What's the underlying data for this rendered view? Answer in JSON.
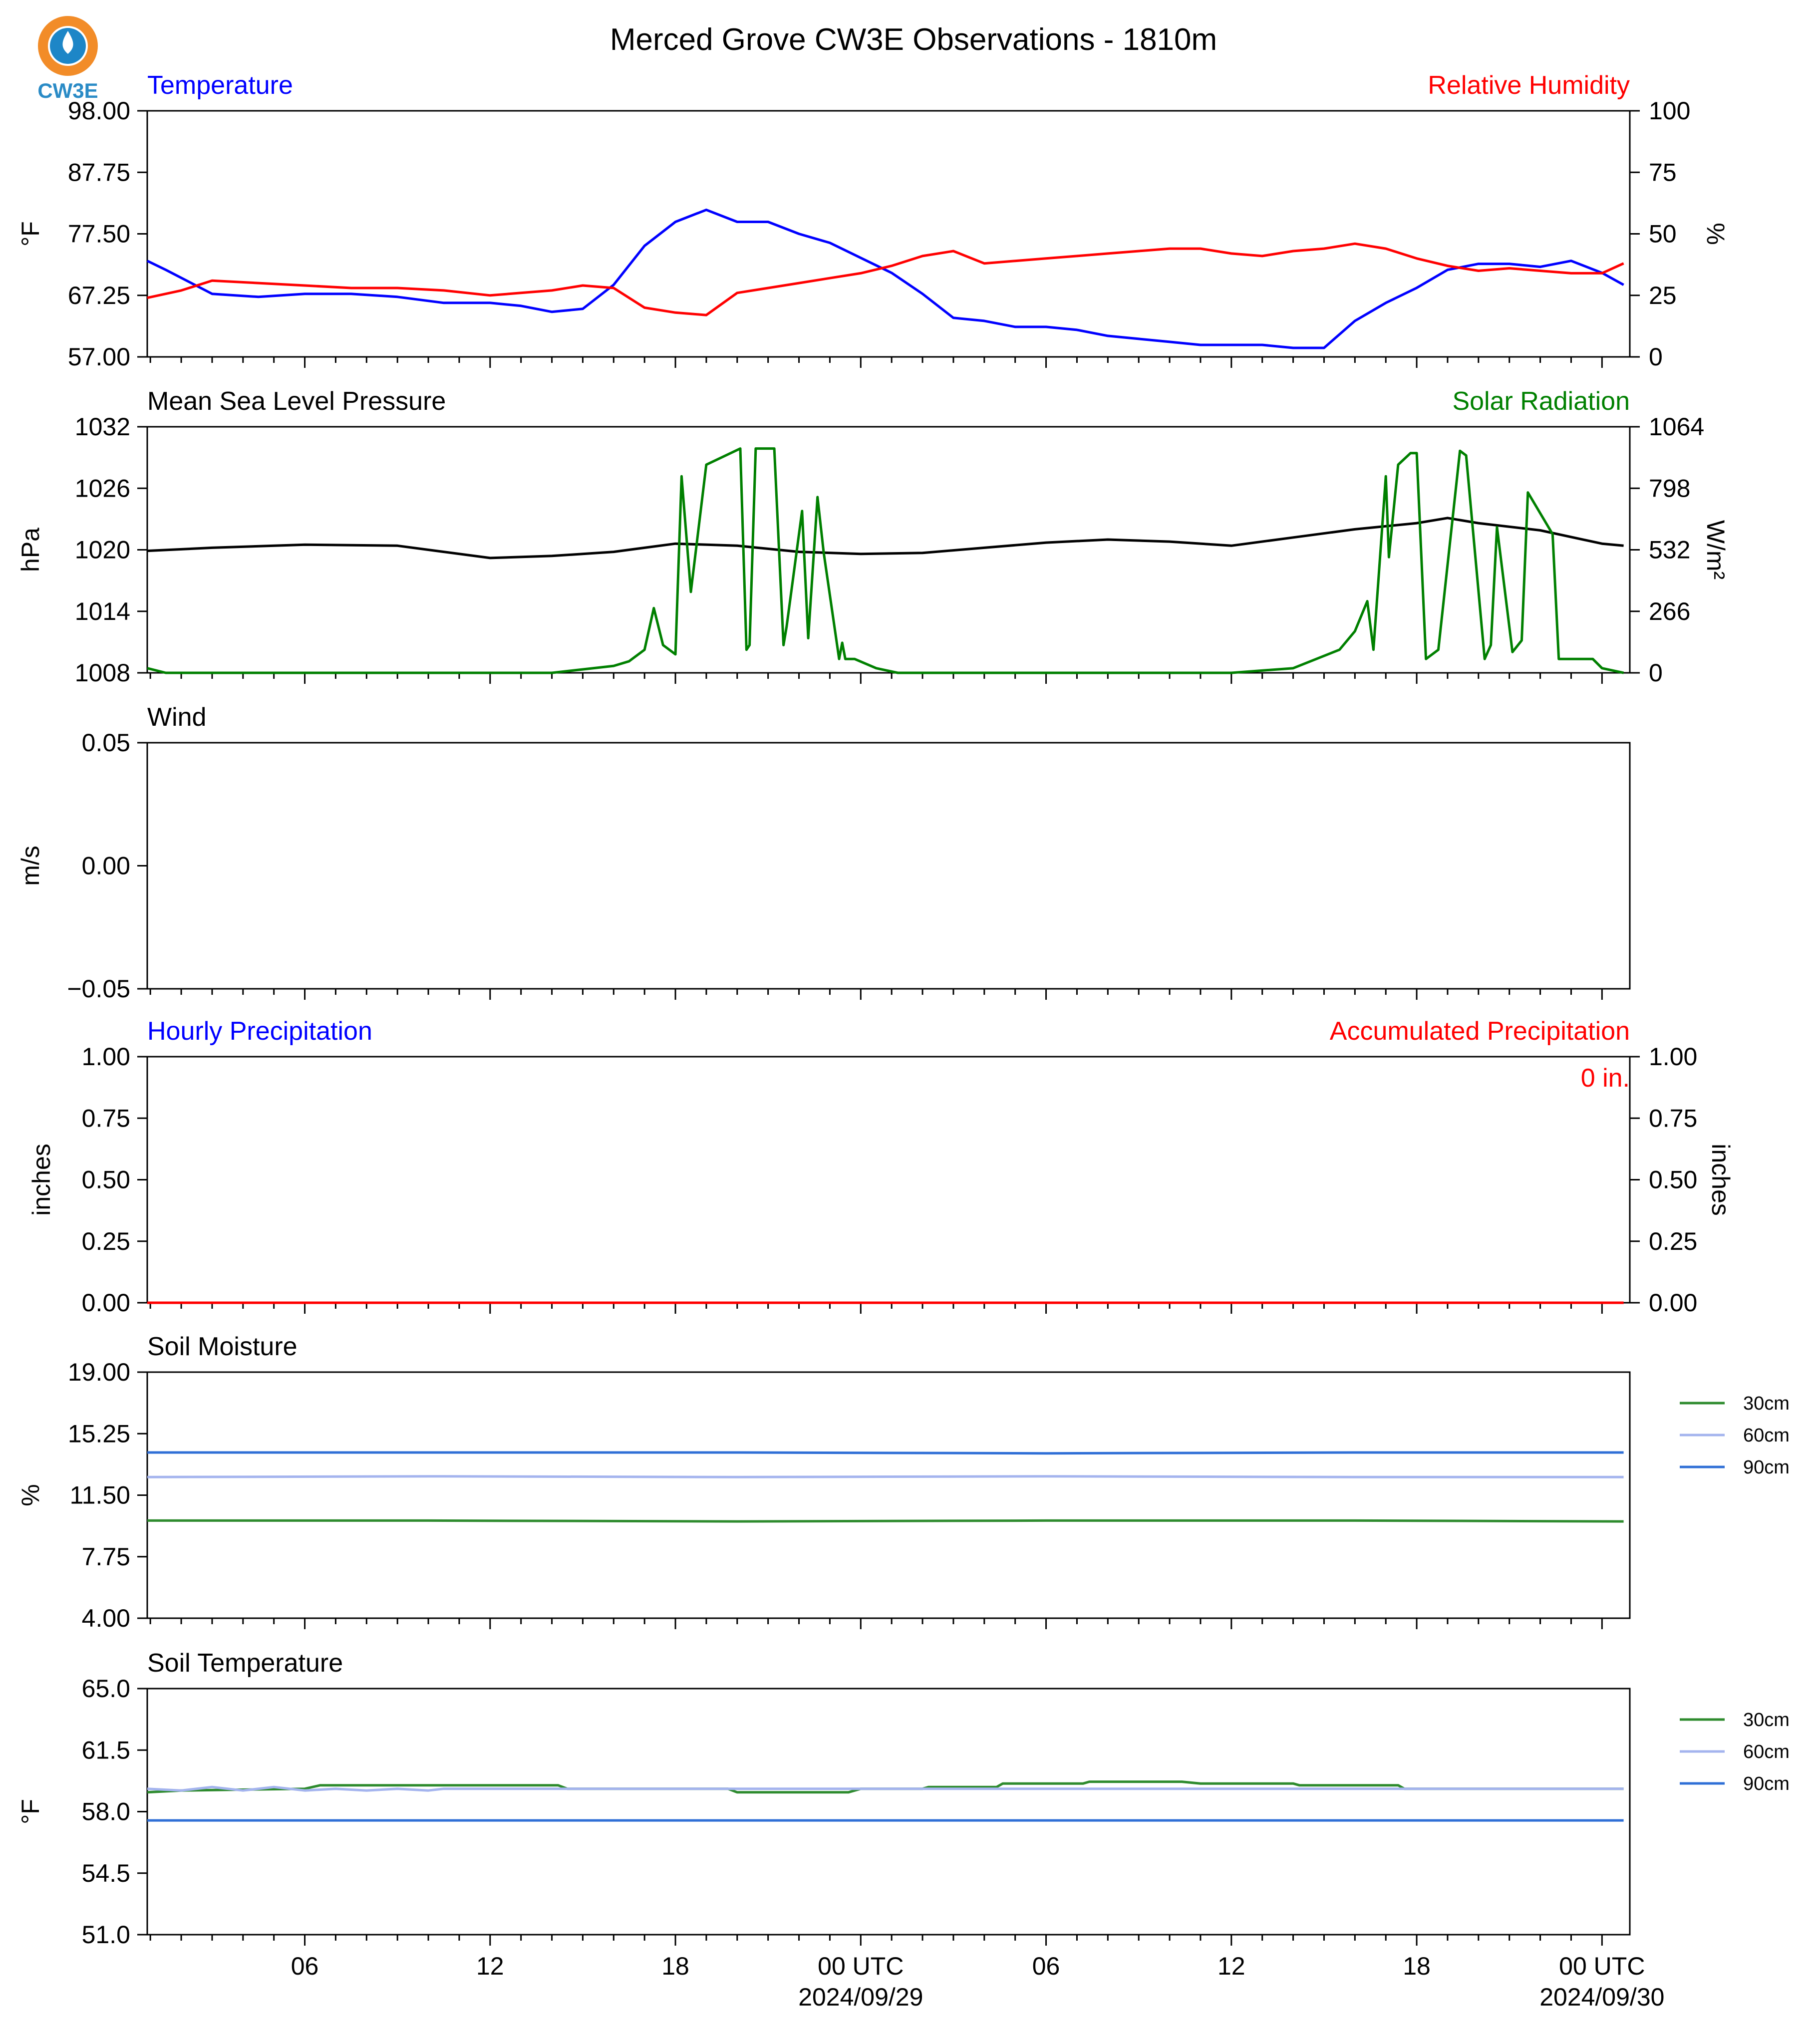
{
  "page": {
    "title": "Merced Grove CW3E Observations - 1810m",
    "logo_text": "CW3E",
    "logo_colors": {
      "ring": "#f28c28",
      "drop": "#1d86c7",
      "text": "#2a8bc6"
    }
  },
  "time_axis": {
    "tick_labels": [
      "06",
      "12",
      "18",
      "00 UTC",
      "06",
      "12",
      "18",
      "00 UTC"
    ],
    "tick_hours": [
      6,
      12,
      18,
      24,
      30,
      36,
      42,
      48
    ],
    "date_labels": [
      "2024/09/29",
      "2024/09/30"
    ],
    "date_label_hours": [
      24,
      48
    ],
    "start_hour": 0.9,
    "end_hour": 48.9
  },
  "chart_data": [
    {
      "type": "line",
      "panel_id": "temperature",
      "title_left": "Temperature",
      "title_right": "Relative Humidity",
      "title_left_color": "#0000ff",
      "title_right_color": "#ff0000",
      "ylabel": "°F",
      "ylabel_right": "%",
      "ylim": [
        57,
        98
      ],
      "ylim_right": [
        0,
        100
      ],
      "yticks": [
        "57.00",
        "67.25",
        "77.50",
        "87.75",
        "98.00"
      ],
      "yticks_right": [
        "0",
        "25",
        "50",
        "75",
        "100"
      ],
      "series": [
        {
          "axis": "left",
          "color": "#0000ff",
          "x": [
            0.9,
            1.5,
            3,
            4.5,
            6,
            7.5,
            9,
            10.5,
            12,
            13,
            14,
            15,
            16,
            17,
            18,
            19,
            20,
            21,
            22,
            23,
            24,
            25,
            26,
            27,
            28,
            29,
            30,
            31,
            32,
            33,
            34,
            35,
            36,
            37,
            38,
            39,
            40,
            41,
            42,
            43,
            44,
            45,
            46,
            47,
            48,
            48.7
          ],
          "values": [
            73,
            71.5,
            67.5,
            67,
            67.5,
            67.5,
            67,
            66,
            66,
            65.5,
            64.5,
            65,
            69,
            75.5,
            79.5,
            81.5,
            79.5,
            79.5,
            77.5,
            76,
            73.5,
            71,
            67.5,
            63.5,
            63,
            62,
            62,
            61.5,
            60.5,
            60,
            59.5,
            59,
            59,
            59,
            58.5,
            58.5,
            63,
            66,
            68.5,
            71.5,
            72.5,
            72.5,
            72,
            73,
            71,
            69
          ]
        },
        {
          "axis": "right",
          "color": "#ff0000",
          "x": [
            0.9,
            2,
            3,
            4.5,
            6,
            7.5,
            9,
            10.5,
            12,
            13,
            14,
            15,
            16,
            17,
            18,
            19,
            20,
            21,
            22,
            23,
            24,
            25,
            26,
            27,
            28,
            29,
            30,
            31,
            32,
            33,
            34,
            35,
            36,
            37,
            38,
            39,
            40,
            41,
            42,
            43,
            44,
            45,
            46,
            47,
            48,
            48.7
          ],
          "values": [
            24,
            27,
            31,
            30,
            29,
            28,
            28,
            27,
            25,
            26,
            27,
            29,
            28,
            20,
            18,
            17,
            26,
            28,
            30,
            32,
            34,
            37,
            41,
            43,
            38,
            39,
            40,
            41,
            42,
            43,
            44,
            44,
            42,
            41,
            43,
            44,
            46,
            44,
            40,
            37,
            35,
            36,
            35,
            34,
            34,
            38
          ]
        }
      ]
    },
    {
      "type": "line",
      "panel_id": "pressure",
      "title_left": "Mean Sea Level Pressure",
      "title_right": "Solar Radiation",
      "title_left_color": "#000000",
      "title_right_color": "#008000",
      "ylabel": "hPa",
      "ylabel_right": "W/m²",
      "ylim": [
        1008,
        1032
      ],
      "ylim_right": [
        0,
        1064
      ],
      "yticks": [
        "1008",
        "1014",
        "1020",
        "1026",
        "1032"
      ],
      "yticks_right": [
        "0",
        "266",
        "532",
        "798",
        "1064"
      ],
      "series": [
        {
          "axis": "left",
          "color": "#000000",
          "x": [
            0.9,
            3,
            6,
            9,
            10.5,
            12,
            14,
            16,
            18,
            20,
            22,
            24,
            26,
            28,
            30,
            32,
            34,
            36,
            38,
            40,
            42,
            43,
            44,
            46,
            48,
            48.7
          ],
          "values": [
            1019.9,
            1020.2,
            1020.5,
            1020.4,
            1019.8,
            1019.2,
            1019.4,
            1019.8,
            1020.6,
            1020.4,
            1019.8,
            1019.6,
            1019.7,
            1020.2,
            1020.7,
            1021,
            1020.8,
            1020.4,
            1021.2,
            1022,
            1022.6,
            1023.1,
            1022.6,
            1021.9,
            1020.6,
            1020.4
          ]
        },
        {
          "axis": "right",
          "color": "#008000",
          "x": [
            0.9,
            1.5,
            14,
            16,
            16.5,
            17,
            17.3,
            17.6,
            18,
            18.2,
            18.5,
            19,
            20.1,
            20.3,
            20.4,
            20.6,
            21.2,
            21.5,
            21.6,
            22.1,
            22.3,
            22.6,
            22.8,
            23.3,
            23.4,
            23.5,
            23.8,
            24.5,
            25.2,
            26,
            36,
            38,
            39.5,
            40,
            40.4,
            40.6,
            41,
            41.1,
            41.4,
            41.8,
            42,
            42.3,
            42.7,
            43.4,
            43.6,
            44.2,
            44.4,
            44.6,
            45.1,
            45.4,
            45.6,
            46.4,
            46.6,
            47.4,
            47.7,
            48,
            48.7
          ],
          "values": [
            20,
            0,
            0,
            30,
            50,
            100,
            280,
            120,
            80,
            850,
            350,
            900,
            970,
            100,
            120,
            970,
            970,
            120,
            200,
            700,
            150,
            760,
            520,
            60,
            130,
            60,
            60,
            20,
            0,
            0,
            0,
            20,
            100,
            180,
            310,
            100,
            850,
            500,
            900,
            950,
            950,
            60,
            100,
            960,
            940,
            60,
            120,
            630,
            90,
            140,
            780,
            600,
            60,
            60,
            60,
            20,
            0
          ]
        }
      ]
    },
    {
      "type": "line",
      "panel_id": "wind",
      "title_left": "Wind",
      "title_left_color": "#000000",
      "ylabel": "m/s",
      "ylim": [
        -0.055,
        0.055
      ],
      "yticks": [
        "−0.05",
        "0.00",
        "0.05"
      ],
      "series": []
    },
    {
      "type": "line",
      "panel_id": "precipitation",
      "title_left": "Hourly Precipitation",
      "title_right": "Accumulated Precipitation",
      "title_left_color": "#0000ff",
      "title_right_color": "#ff0000",
      "annotation": "0 in.",
      "ylabel": "inches",
      "ylabel_right": "inches",
      "ylim": [
        0,
        1
      ],
      "ylim_right": [
        0,
        1
      ],
      "yticks": [
        "0.00",
        "0.25",
        "0.50",
        "0.75",
        "1.00"
      ],
      "yticks_right": [
        "0.00",
        "0.25",
        "0.50",
        "0.75",
        "1.00"
      ],
      "series": [
        {
          "axis": "left",
          "color": "#0000ff",
          "x": [
            0.9,
            48.7
          ],
          "values": [
            0,
            0
          ]
        },
        {
          "axis": "right",
          "color": "#ff0000",
          "x": [
            0.9,
            48.7
          ],
          "values": [
            0,
            0
          ]
        }
      ]
    },
    {
      "type": "line",
      "panel_id": "soil-moisture",
      "title_left": "Soil Moisture",
      "title_left_color": "#000000",
      "ylabel": "%",
      "ylim": [
        4,
        19
      ],
      "yticks": [
        "4.00",
        "7.75",
        "11.50",
        "15.25",
        "19.00"
      ],
      "legend_position": "right",
      "series": [
        {
          "name": "30cm",
          "color": "#2e8b2e",
          "x": [
            0.9,
            10,
            20,
            30,
            40,
            48.7
          ],
          "values": [
            9.95,
            9.95,
            9.9,
            9.95,
            9.95,
            9.9
          ]
        },
        {
          "name": "60cm",
          "color": "#a4b4ee",
          "x": [
            0.9,
            10,
            20,
            30,
            40,
            48.7
          ],
          "values": [
            12.6,
            12.65,
            12.6,
            12.65,
            12.6,
            12.6
          ]
        },
        {
          "name": "90cm",
          "color": "#2f6fd6",
          "x": [
            0.9,
            10,
            20,
            30,
            40,
            48.7
          ],
          "values": [
            14.1,
            14.1,
            14.1,
            14.05,
            14.1,
            14.1
          ]
        }
      ]
    },
    {
      "type": "line",
      "panel_id": "soil-temperature",
      "title_left": "Soil Temperature",
      "title_left_color": "#000000",
      "ylabel": "°F",
      "ylim": [
        51,
        65
      ],
      "yticks": [
        "51.0",
        "54.5",
        "58.0",
        "61.5",
        "65.0"
      ],
      "legend_position": "right",
      "series": [
        {
          "name": "30cm",
          "color": "#2e8b2e",
          "x": [
            0.9,
            2,
            6,
            6.5,
            14.2,
            14.5,
            19.7,
            20,
            23.6,
            24,
            26,
            26.2,
            28.4,
            28.6,
            31.2,
            31.4,
            33,
            33.4,
            34.4,
            35,
            38,
            38.2,
            41.4,
            41.6,
            42.4,
            42.6,
            48.7
          ],
          "values": [
            59.1,
            59.2,
            59.3,
            59.5,
            59.5,
            59.3,
            59.3,
            59.1,
            59.1,
            59.3,
            59.3,
            59.4,
            59.4,
            59.6,
            59.6,
            59.7,
            59.7,
            59.7,
            59.7,
            59.6,
            59.6,
            59.5,
            59.5,
            59.3,
            59.3,
            59.3,
            59.3
          ]
        },
        {
          "name": "60cm",
          "color": "#a4b4ee",
          "x": [
            0.9,
            2,
            3,
            4,
            5,
            6,
            7,
            8,
            9,
            10,
            10.5,
            11,
            48.7
          ],
          "values": [
            59.3,
            59.2,
            59.4,
            59.2,
            59.4,
            59.2,
            59.3,
            59.2,
            59.3,
            59.2,
            59.3,
            59.3,
            59.3
          ]
        },
        {
          "name": "90cm",
          "color": "#2f6fd6",
          "x": [
            0.9,
            48.7
          ],
          "values": [
            57.5,
            57.5
          ]
        }
      ]
    }
  ]
}
